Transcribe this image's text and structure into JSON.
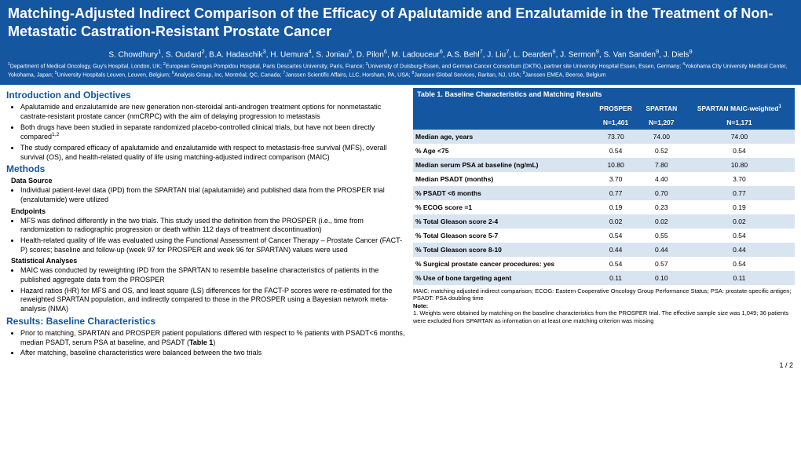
{
  "header": {
    "title": "Matching-Adjusted Indirect Comparison of the Efficacy of Apalutamide and Enzalutamide in the Treatment of Non-Metastatic Castration-Resistant Prostate Cancer",
    "authors_html": "S. Chowdhury<sup>1</sup>, S. Oudard<sup>2</sup>, B.A. Hadaschik<sup>3</sup>, H. Uemura<sup>4</sup>, S. Joniau<sup>5</sup>, D. Pilon<sup>6</sup>, M. Ladouceur<sup>6</sup>, A.S. Behl<sup>7</sup>, J. Liu<sup>7</sup>, L. Dearden<sup>9</sup>, J. Sermon<sup>9</sup>, S. Van Sanden<sup>9</sup>, J. Diels<sup>9</sup>",
    "affil_html": "<sup>1</sup>Department of Medical Oncology, Guy's Hospital, London, UK; <sup>2</sup>European Georges Pompidou Hospital, Paris Descartes University, Paris, France; <sup>3</sup>University of Duisburg-Essen, and German Cancer Consortium (DKTK), partner site University Hospital Essen, Essen, Germany; <sup>4</sup>Yokohama City University Medical Center, Yokohama, Japan; <sup>5</sup>University Hospitals Leuven, Leuven, Belgium; <sup>6</sup>Analysis Group, Inc, Montréal, QC, Canada; <sup>7</sup>Janssen Scientific Affairs, LLC, Horsham, PA, USA; <sup>8</sup>Janssen Global Services, Raritan, NJ, USA; <sup>9</sup>Janssen EMEA, Beerse, Belgium"
  },
  "sections": {
    "intro_h": "Introduction and Objectives",
    "intro_items_html": [
      "Apalutamide and enzalutamide are new generation non-steroidal anti-androgen treatment options for nonmetastatic castrate-resistant prostate cancer (nmCRPC) with the aim of delaying progression to metastasis",
      "Both drugs have been studied in separate randomized placebo-controlled clinical trials, but have not been directly compared<sup>1,2</sup>",
      "The study compared efficacy of apalutamide and enzalutamide with respect to metastasis-free survival (MFS), overall survival (OS), and health-related quality of life using matching-adjusted indirect comparison (MAIC)"
    ],
    "methods_h": "Methods",
    "data_source_h": "Data Source",
    "data_source_items": [
      "Individual patient-level data (IPD) from the SPARTAN trial (apalutamide) and published data from the PROSPER trial (enzalutamide) were utilized"
    ],
    "endpoints_h": "Endpoints",
    "endpoints_items": [
      "MFS was defined differently in the two trials. This study used the definition from the PROSPER (i.e., time from randomization to radiographic progression or death within 112 days of treatment discontinuation)",
      "Health-related quality of life was evaluated using the Functional Assessment of Cancer Therapy – Prostate Cancer (FACT-P) scores; baseline and follow-up (week 97 for PROSPER and week 96 for SPARTAN) values were used"
    ],
    "stats_h": "Statistical Analyses",
    "stats_items": [
      "MAIC was conducted by reweighting IPD from the SPARTAN to resemble baseline characteristics of patients in the published aggregate data from the PROSPER",
      "Hazard ratios (HR) for MFS and OS, and least square (LS) differences for the FACT-P scores were re-estimated for the reweighted SPARTAN population, and indirectly compared to those in the PROSPER using a Bayesian network meta-analysis (NMA)"
    ],
    "results_h": "Results: Baseline Characteristics",
    "results_items_html": [
      "Prior to matching, SPARTAN and PROSPER patient populations differed with respect to % patients with PSADT&lt;6 months, median PSADT, serum PSA at baseline, and PSADT (<b>Table 1</b>)",
      "After matching, baseline characteristics were balanced between the two trials"
    ]
  },
  "table": {
    "title": "Table 1. Baseline Characteristics and Matching Results",
    "cols": [
      "",
      "PROSPER",
      "SPARTAN",
      "SPARTAN MAIC-weighted<sup>1</sup>"
    ],
    "n_row": [
      "",
      "N=1,401",
      "N=1,207",
      "N=1,171"
    ],
    "rows": [
      [
        "Median age, years",
        "73.70",
        "74.00",
        "74.00"
      ],
      [
        "% Age <75",
        "0.54",
        "0.52",
        "0.54"
      ],
      [
        "Median serum PSA at baseline (ng/mL)",
        "10.80",
        "7.80",
        "10.80"
      ],
      [
        "Median PSADT (months)",
        "3.70",
        "4.40",
        "3.70"
      ],
      [
        "% PSADT <6 months",
        "0.77",
        "0.70",
        "0.77"
      ],
      [
        "% ECOG score =1",
        "0.19",
        "0.23",
        "0.19"
      ],
      [
        "% Total Gleason score 2-4",
        "0.02",
        "0.02",
        "0.02"
      ],
      [
        "% Total Gleason score 5-7",
        "0.54",
        "0.55",
        "0.54"
      ],
      [
        "% Total Gleason score 8-10",
        "0.44",
        "0.44",
        "0.44"
      ],
      [
        "% Surgical prostate cancer procedures: yes",
        "0.54",
        "0.57",
        "0.54"
      ],
      [
        "% Use of bone targeting agent",
        "0.11",
        "0.10",
        "0.11"
      ]
    ],
    "footnote_html": "MAIC: matching adjusted indirect comparison; ECOG: Eastern Cooperative Oncology Group Performance Status; PSA: prostate-specific antigen; PSADT: PSA doubling time<br><b>Note:</b><br>1. Weights were obtained by matching on the baseline characteristics from the PROSPER trial. The effective sample size was 1,049; 36 patients were excluded from SPARTAN as information on at least one matching criterion was missing"
  },
  "pager": "1 / 2",
  "colors": {
    "brand": "#1456a0",
    "row_alt": "#d9e4f1"
  }
}
